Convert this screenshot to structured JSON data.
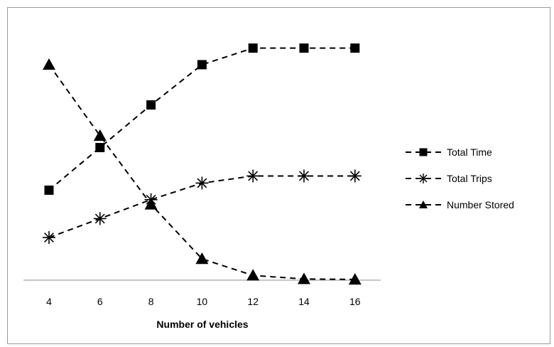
{
  "chart_data": {
    "type": "line",
    "xlabel": "Number of vehicles",
    "ylabel": "",
    "x": [
      4,
      6,
      8,
      10,
      12,
      14,
      16
    ],
    "ylim": [
      0,
      100
    ],
    "grid": false,
    "legend_position": "right",
    "series": [
      {
        "name": "Total Time",
        "marker": "square",
        "color": "#000000",
        "values": [
          38,
          56,
          74,
          91,
          98,
          98,
          98
        ]
      },
      {
        "name": "Total Trips",
        "marker": "asterisk",
        "color": "#000000",
        "values": [
          18,
          26,
          34,
          41,
          44,
          44,
          44
        ]
      },
      {
        "name": "Number Stored",
        "marker": "triangle",
        "color": "#000000",
        "values": [
          91,
          61,
          32,
          9,
          2,
          0.5,
          0.3
        ]
      }
    ]
  }
}
